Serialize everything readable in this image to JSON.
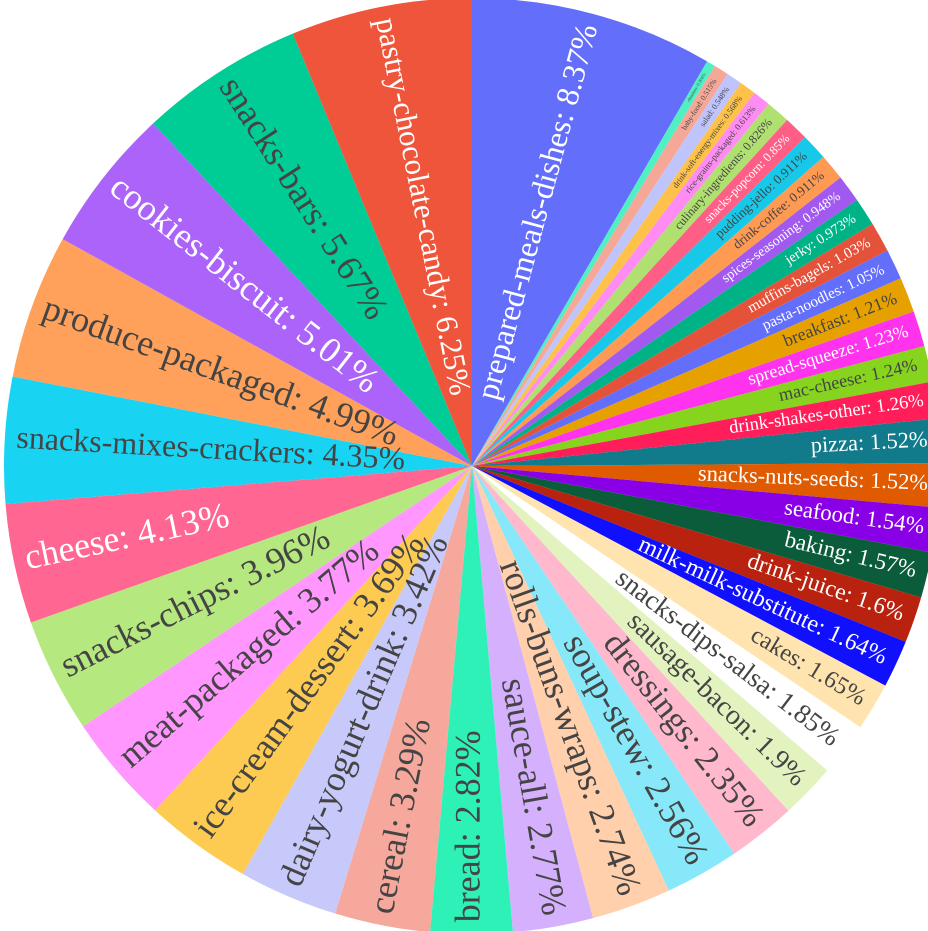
{
  "chart_data": {
    "type": "pie",
    "label_separator": ": ",
    "categories": [
      "prepared-meals-dishes",
      "chunkies",
      "baby-food",
      "salad",
      "drink-soft-energy-mixes",
      "rice-grains-packaged",
      "culinary-ingredients",
      "snacks-popcorn",
      "pudding-jello",
      "drink-coffee",
      "spices-seasoning",
      "jerky",
      "muffins-bagels",
      "pasta-noodles",
      "breakfast",
      "spread-squeeze",
      "mac-cheese",
      "drink-shakes-other",
      "pizza",
      "snacks-nuts-seeds",
      "seafood",
      "baking",
      "drink-juice",
      "milk-milk-substitute",
      "cakes",
      "snacks-dips-salsa",
      "sausage-bacon",
      "dressings",
      "soup-stew",
      "rolls-buns-wraps",
      "sauce-all",
      "bread",
      "cereal",
      "dairy-yogurt-drink",
      "ice-cream-dessert",
      "meat-packaged",
      "snacks-chips",
      "cheese",
      "snacks-mixes-crackers",
      "produce-packaged",
      "cookies-biscuit",
      "snacks-bars",
      "pastry-chocolate-candy"
    ],
    "values": [
      8.37,
      0.304,
      0.515,
      0.548,
      0.568,
      0.613,
      0.826,
      0.85,
      0.911,
      0.911,
      0.948,
      0.973,
      1.03,
      1.05,
      1.21,
      1.23,
      1.24,
      1.26,
      1.52,
      1.52,
      1.54,
      1.57,
      1.6,
      1.64,
      1.65,
      1.85,
      1.9,
      2.35,
      2.56,
      2.74,
      2.77,
      2.82,
      3.29,
      3.42,
      3.69,
      3.77,
      3.96,
      4.13,
      4.35,
      4.99,
      5.01,
      5.67,
      6.25
    ],
    "value_labels": [
      "8.37%",
      "0.304%",
      "0.515%",
      "0.548%",
      "0.568%",
      "0.613%",
      "0.826%",
      "0.85%",
      "0.911%",
      "0.911%",
      "0.948%",
      "0.973%",
      "1.03%",
      "1.05%",
      "1.21%",
      "1.23%",
      "1.24%",
      "1.26%",
      "1.52%",
      "1.52%",
      "1.54%",
      "1.57%",
      "1.6%",
      "1.64%",
      "1.65%",
      "1.85%",
      "1.9%",
      "2.35%",
      "2.56%",
      "2.74%",
      "2.77%",
      "2.82%",
      "3.29%",
      "3.42%",
      "3.69%",
      "3.77%",
      "3.96%",
      "4.13%",
      "4.35%",
      "4.99%",
      "5.01%",
      "5.67%",
      "6.25%"
    ],
    "colors": [
      "#636efa",
      "#4ef0c4",
      "#f5a898",
      "#c0c4fc",
      "#fec24a",
      "#ff8cf2",
      "#b0e070",
      "#ff5f86",
      "#18c8e8",
      "#ff9a52",
      "#a259f0",
      "#00b386",
      "#e5523a",
      "#636efa",
      "#e6a100",
      "#ff33ee",
      "#86d41e",
      "#ff1e5a",
      "#117a8b",
      "#e05a00",
      "#8a00e6",
      "#0a5c3a",
      "#b8220f",
      "#1010ff",
      "#ffe4b0",
      "#ffffff",
      "#e3f3c0",
      "#ffb8cc",
      "#86e8f8",
      "#ffd0ab",
      "#d5b1fd",
      "#2ef1b8",
      "#f6a89d",
      "#c6c9f9",
      "#fecb52",
      "#ff97ff",
      "#b6e880",
      "#ff6692",
      "#19d3f3",
      "#ffa15a",
      "#ab63fa",
      "#00cc96",
      "#ef553b"
    ],
    "direction": "clockwise",
    "start_angle": 0
  }
}
